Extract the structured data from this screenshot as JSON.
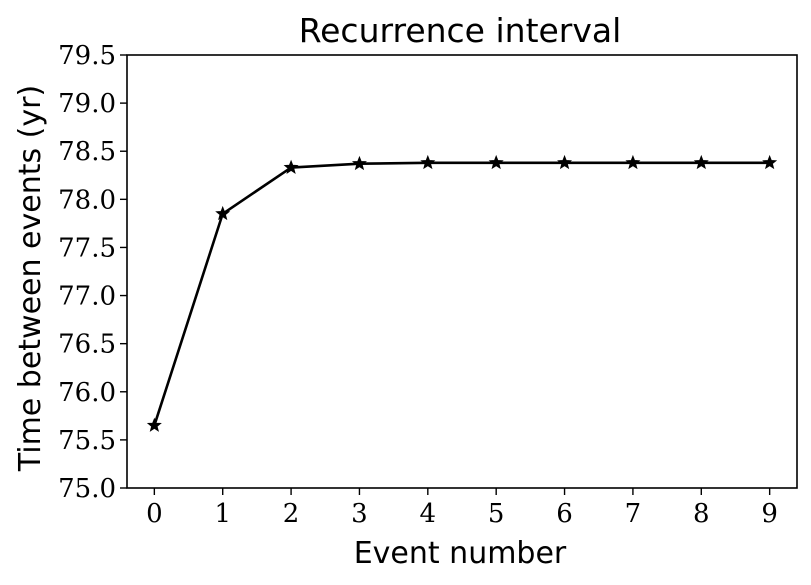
{
  "chart_data": {
    "type": "line",
    "title": "Recurrence interval",
    "xlabel": "Event number",
    "ylabel": "Time between events (yr)",
    "x": [
      0,
      1,
      2,
      3,
      4,
      5,
      6,
      7,
      8,
      9
    ],
    "series": [
      {
        "values": [
          75.65,
          77.85,
          78.33,
          78.37,
          78.38,
          78.38,
          78.38,
          78.38,
          78.38,
          78.38
        ],
        "color": "#000000",
        "marker": "star"
      }
    ],
    "xlim": [
      -0.4,
      9.4
    ],
    "ylim": [
      75.0,
      79.5
    ],
    "xticks": [
      "0",
      "1",
      "2",
      "3",
      "4",
      "5",
      "6",
      "7",
      "8",
      "9"
    ],
    "yticks": [
      "75.0",
      "75.5",
      "76.0",
      "76.5",
      "77.0",
      "77.5",
      "78.0",
      "78.5",
      "79.0",
      "79.5"
    ],
    "grid": false
  }
}
